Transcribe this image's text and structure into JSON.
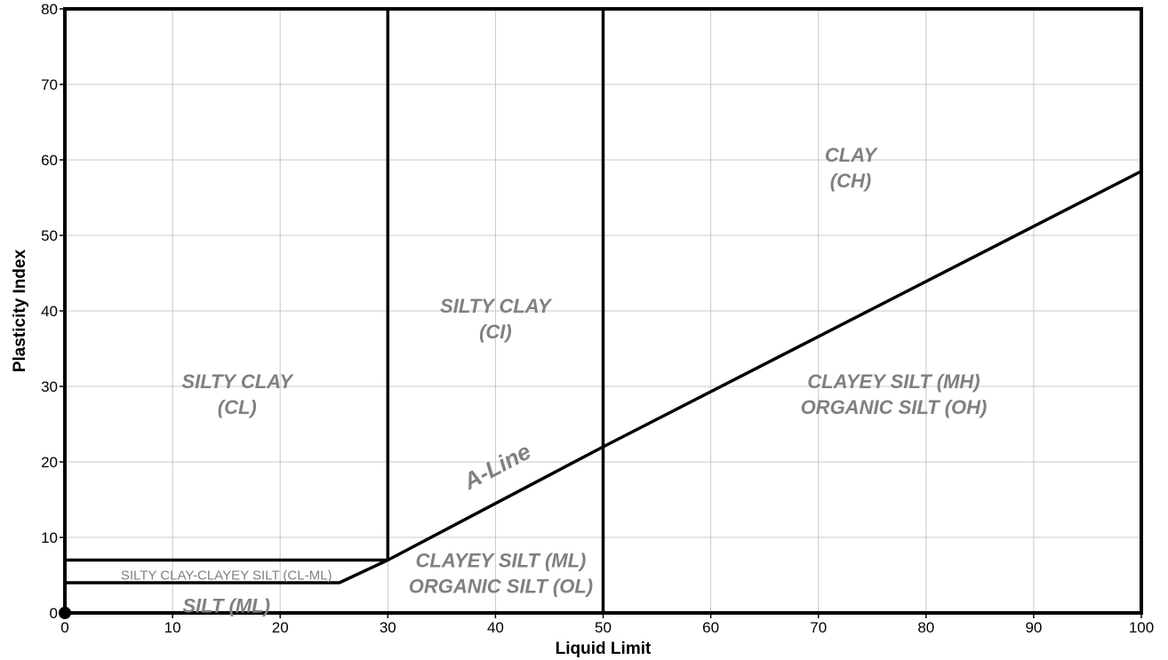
{
  "chart_data": {
    "type": "line",
    "title": "",
    "xlabel": "Liquid Limit",
    "ylabel": "Plasticity Index",
    "xlim": [
      0,
      100
    ],
    "ylim": [
      0,
      80
    ],
    "xticks": [
      0,
      10,
      20,
      30,
      40,
      50,
      60,
      70,
      80,
      90,
      100
    ],
    "yticks": [
      0,
      10,
      20,
      30,
      40,
      50,
      60,
      70,
      80
    ],
    "grid": true,
    "boundaries": [
      {
        "name": "A-Line",
        "points": [
          [
            30,
            7
          ],
          [
            50,
            22
          ],
          [
            100,
            58.5
          ]
        ]
      },
      {
        "points": [
          [
            30,
            7
          ],
          [
            30,
            80
          ]
        ]
      },
      {
        "points": [
          [
            50,
            0
          ],
          [
            50,
            80
          ]
        ]
      },
      {
        "points": [
          [
            0,
            7
          ],
          [
            30,
            7
          ]
        ]
      },
      {
        "points": [
          [
            0,
            4
          ],
          [
            25.5,
            4
          ],
          [
            30,
            7
          ]
        ]
      }
    ],
    "origin_marker": [
      0,
      0
    ],
    "zones": [
      {
        "lines": [
          "CLAY",
          "(CH)"
        ],
        "x": 73,
        "y": 59,
        "small": false
      },
      {
        "lines": [
          "SILTY CLAY",
          "(CI)"
        ],
        "x": 40,
        "y": 39,
        "small": false
      },
      {
        "lines": [
          "SILTY CLAY",
          "(CL)"
        ],
        "x": 16,
        "y": 29,
        "small": false
      },
      {
        "lines": [
          "CLAYEY SILT (MH)",
          "ORGANIC SILT (OH)"
        ],
        "x": 77,
        "y": 29,
        "small": false
      },
      {
        "lines": [
          "CLAYEY SILT (ML)",
          "ORGANIC SILT (OL)"
        ],
        "x": 40.5,
        "y": 5.3,
        "small": false
      },
      {
        "lines": [
          "SILT (ML)"
        ],
        "x": 15,
        "y": 1,
        "small": false
      },
      {
        "lines": [
          "SILTY CLAY-CLAYEY SILT (CL-ML)"
        ],
        "x": 15,
        "y": 5,
        "small": true
      }
    ],
    "annotations": [
      {
        "text": "A-Line",
        "x": 40.5,
        "y": 18.5
      }
    ]
  }
}
